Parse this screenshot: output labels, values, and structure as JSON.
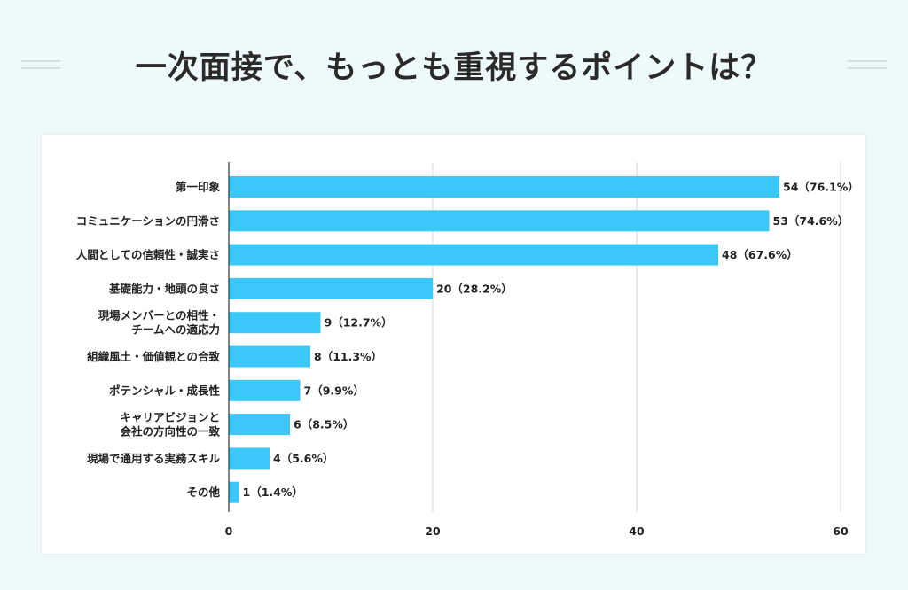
{
  "title": "一次面接で、もっとも重視するポイントは？",
  "colors": {
    "bar": "#3cc7f9",
    "grid": "#d4d4d4",
    "axis": "#333333",
    "background": "#eef9fa"
  },
  "chart_data": {
    "type": "bar",
    "orientation": "horizontal",
    "title": "一次面接で、もっとも重視するポイントは？",
    "categories": [
      "第一印象",
      "コミュニケーションの円滑さ",
      "人間としての信頼性・誠実さ",
      "基礎能力・地頭の良さ",
      "現場メンバーとの相性・\nチームへの適応力",
      "組織風土・価値観との合致",
      "ポテンシャル・成長性",
      "キャリアビジョンと\n会社の方向性の一致",
      "現場で通用する実務スキル",
      "その他"
    ],
    "values": [
      54,
      53,
      48,
      20,
      9,
      8,
      7,
      6,
      4,
      1
    ],
    "data_labels": [
      "54（76.1%）",
      "53（74.6%）",
      "48（67.6%）",
      "20（28.2%）",
      "9（12.7%）",
      "8（11.3%）",
      "7（9.9%）",
      "6（8.5%）",
      "4（5.6%）",
      "1（1.4%）"
    ],
    "xlim": [
      0,
      60
    ],
    "xticks": [
      "0",
      "20",
      "40",
      "60"
    ],
    "grid": true,
    "legend": "none"
  }
}
